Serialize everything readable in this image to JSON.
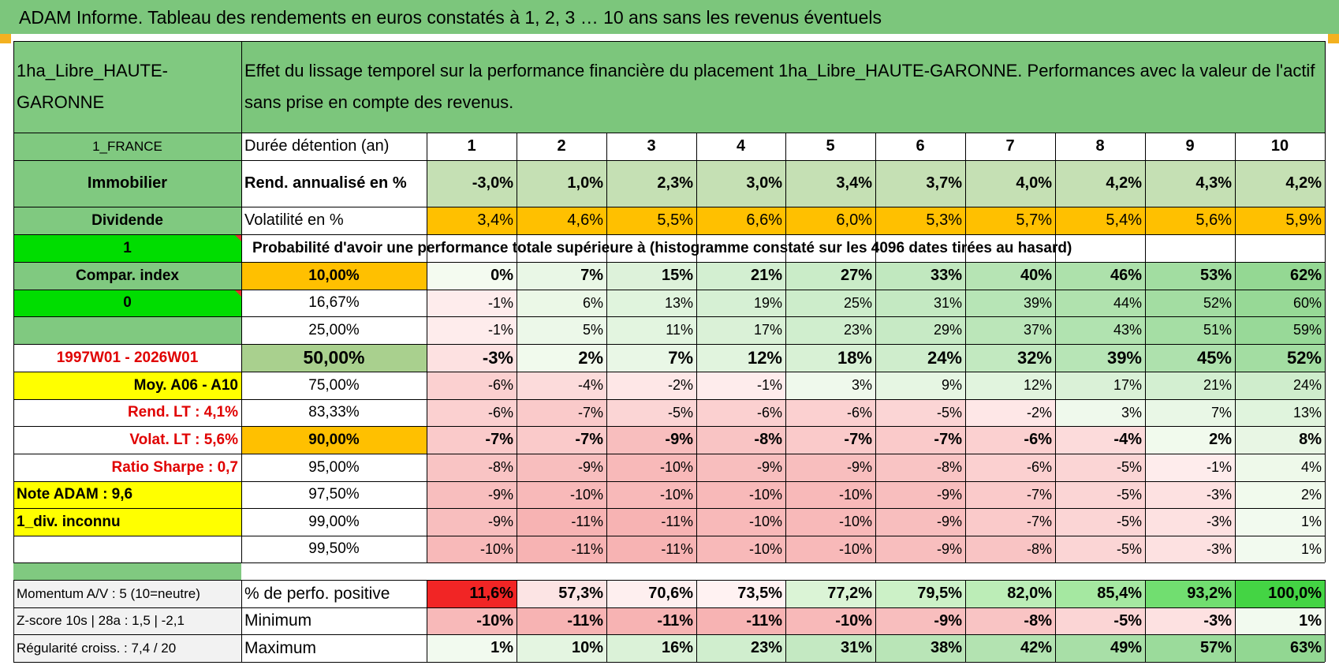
{
  "title": "ADAM Informe. Tableau des rendements en euros constatés à 1, 2, 3 … 10 ans sans les revenus éventuels",
  "colors": {
    "header_green": "#7cc67c",
    "cell_green": "#80c980",
    "bright_green": "#00dd00",
    "yellow": "#ffff00",
    "orange": "#ffc000",
    "red_text": "#e00000"
  },
  "asset": {
    "name": "1ha_Libre_HAUTE-GARONNE",
    "description": "Effet du lissage temporel sur la performance financière du placement 1ha_Libre_HAUTE-GARONNE. Performances avec la valeur de l'actif sans prise en compte des revenus."
  },
  "left_panel": [
    "1_FRANCE",
    "Immobilier",
    "Dividende",
    "1",
    "Compar. index",
    "0",
    "",
    "1997W01 - 2026W01",
    "Moy. A06 - A10",
    "Rend. LT :    4,1%",
    "Volat. LT :    5,6%",
    "Ratio Sharpe :     0,7",
    "Note ADAM : 9,6",
    "1_div. inconnu",
    ""
  ],
  "years_label": "Durée détention (an)",
  "years": [
    "1",
    "2",
    "3",
    "4",
    "5",
    "6",
    "7",
    "8",
    "9",
    "10"
  ],
  "rend_label": "Rend. annualisé en %",
  "rend": [
    "-3,0%",
    "1,0%",
    "2,3%",
    "3,0%",
    "3,4%",
    "3,7%",
    "4,0%",
    "4,2%",
    "4,3%",
    "4,2%"
  ],
  "vol_label": "Volatilité en %",
  "vol": [
    "3,4%",
    "4,6%",
    "5,5%",
    "6,6%",
    "6,0%",
    "5,3%",
    "5,7%",
    "5,4%",
    "5,6%",
    "5,9%"
  ],
  "prob_header": "Probabilité d'avoir une performance totale supérieure à (histogramme constaté sur les 4096 dates tirées au hasard)",
  "quantiles": [
    {
      "label": "10,00%",
      "values": [
        "0%",
        "7%",
        "15%",
        "21%",
        "27%",
        "33%",
        "40%",
        "46%",
        "53%",
        "62%"
      ]
    },
    {
      "label": "16,67%",
      "values": [
        "-1%",
        "6%",
        "13%",
        "19%",
        "25%",
        "31%",
        "39%",
        "44%",
        "52%",
        "60%"
      ]
    },
    {
      "label": "25,00%",
      "values": [
        "-1%",
        "5%",
        "11%",
        "17%",
        "23%",
        "29%",
        "37%",
        "43%",
        "51%",
        "59%"
      ]
    },
    {
      "label": "50,00%",
      "values": [
        "-3%",
        "2%",
        "7%",
        "12%",
        "18%",
        "24%",
        "32%",
        "39%",
        "45%",
        "52%"
      ]
    },
    {
      "label": "75,00%",
      "values": [
        "-6%",
        "-4%",
        "-2%",
        "-1%",
        "3%",
        "9%",
        "12%",
        "17%",
        "21%",
        "24%"
      ]
    },
    {
      "label": "83,33%",
      "values": [
        "-6%",
        "-7%",
        "-5%",
        "-6%",
        "-6%",
        "-5%",
        "-2%",
        "3%",
        "7%",
        "13%"
      ]
    },
    {
      "label": "90,00%",
      "values": [
        "-7%",
        "-7%",
        "-9%",
        "-8%",
        "-7%",
        "-7%",
        "-6%",
        "-4%",
        "2%",
        "8%"
      ]
    },
    {
      "label": "95,00%",
      "values": [
        "-8%",
        "-9%",
        "-10%",
        "-9%",
        "-9%",
        "-8%",
        "-6%",
        "-5%",
        "-1%",
        "4%"
      ]
    },
    {
      "label": "97,50%",
      "values": [
        "-9%",
        "-10%",
        "-10%",
        "-10%",
        "-10%",
        "-9%",
        "-7%",
        "-5%",
        "-3%",
        "2%"
      ]
    },
    {
      "label": "99,00%",
      "values": [
        "-9%",
        "-11%",
        "-11%",
        "-10%",
        "-10%",
        "-9%",
        "-7%",
        "-5%",
        "-3%",
        "1%"
      ]
    },
    {
      "label": "99,50%",
      "values": [
        "-10%",
        "-11%",
        "-11%",
        "-10%",
        "-10%",
        "-9%",
        "-8%",
        "-5%",
        "-3%",
        "1%"
      ]
    }
  ],
  "bottom_rows": [
    {
      "left": "Momentum A/V : 5 (10=neutre)",
      "label": "% de perfo. positive",
      "values": [
        "11,6%",
        "57,3%",
        "70,6%",
        "73,5%",
        "77,2%",
        "79,5%",
        "82,0%",
        "85,4%",
        "93,2%",
        "100,0%"
      ]
    },
    {
      "left": "Z-score 10s | 28a : 1,5 | -2,1",
      "label": "Minimum",
      "values": [
        "-10%",
        "-11%",
        "-11%",
        "-11%",
        "-10%",
        "-9%",
        "-8%",
        "-5%",
        "-3%",
        "1%"
      ]
    },
    {
      "left": "Régularité croiss. : 7,4 / 20",
      "label": "Maximum",
      "values": [
        "1%",
        "10%",
        "16%",
        "23%",
        "31%",
        "38%",
        "42%",
        "49%",
        "57%",
        "63%"
      ]
    }
  ]
}
